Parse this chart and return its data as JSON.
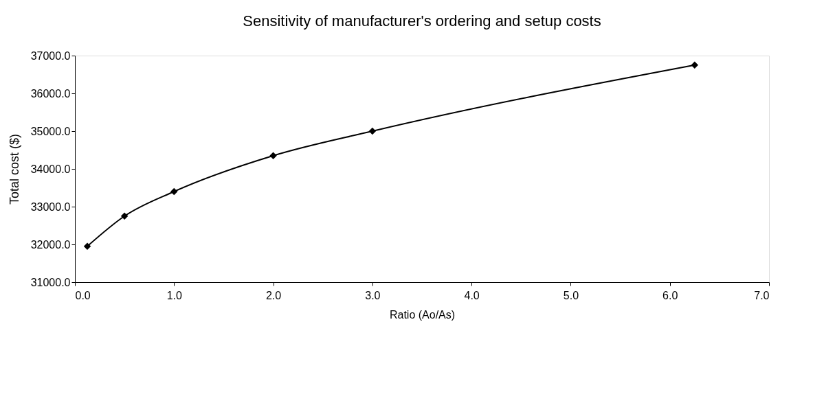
{
  "chart_data": {
    "type": "line",
    "title": "Sensitivity of manufacturer's ordering and setup costs",
    "xlabel": "Ratio (Ao/As)",
    "ylabel": "Total cost ($)",
    "x": [
      0.125,
      0.5,
      1.0,
      2.0,
      3.0,
      6.25
    ],
    "series": [
      {
        "color": "#000000",
        "values": [
          31950,
          32750,
          33400,
          34350,
          35000,
          36750
        ]
      }
    ],
    "xlim": [
      0,
      7
    ],
    "xticks": [
      {
        "value": 0,
        "label": "0.0"
      },
      {
        "value": 1,
        "label": "1.0"
      },
      {
        "value": 2,
        "label": "2.0"
      },
      {
        "value": 3,
        "label": "3.0"
      },
      {
        "value": 4,
        "label": "4.0"
      },
      {
        "value": 5,
        "label": "5.0"
      },
      {
        "value": 6,
        "label": "6.0"
      },
      {
        "value": 7,
        "label": "7.0"
      }
    ],
    "ylim": [
      31000,
      37000
    ],
    "yticks": [
      {
        "value": 31000,
        "label": "31000.0"
      },
      {
        "value": 32000,
        "label": "32000.0"
      },
      {
        "value": 33000,
        "label": "33000.0"
      },
      {
        "value": 34000,
        "label": "34000.0"
      },
      {
        "value": 35000,
        "label": "35000.0"
      },
      {
        "value": 36000,
        "label": "36000.0"
      },
      {
        "value": 37000,
        "label": "37000.0"
      }
    ],
    "grid": false,
    "marker": "diamond",
    "line_style": "solid"
  }
}
